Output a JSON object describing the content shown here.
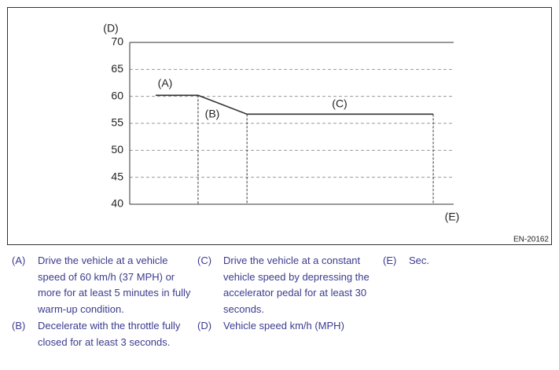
{
  "chart_data": {
    "type": "line",
    "y_label": "(D)",
    "x_label": "(E)",
    "x": [
      8,
      21.1,
      36.2,
      93.7
    ],
    "series": [
      {
        "color": "#333333",
        "values": [
          60.2,
          60.2,
          56.7,
          56.7
        ]
      }
    ],
    "xlim": [
      0,
      100
    ],
    "ylim": [
      40,
      70
    ],
    "yticks": [
      40,
      45,
      50,
      55,
      60,
      65,
      70
    ],
    "grid": true,
    "annotations": [
      "(A)",
      "(B)",
      "(C)"
    ]
  },
  "figure_id": "EN-20162",
  "notes": [
    {
      "key": "(A)",
      "text": "Drive the vehicle at a vehicle speed of 60 km/h (37 MPH) or more for at least 5 minutes in fully warm-up condition."
    },
    {
      "key": "(B)",
      "text": "Decelerate with the throttle fully closed for at least 3 seconds."
    },
    {
      "key": "(C)",
      "text": "Drive the vehicle at a constant vehicle speed by depressing the accelerator pedal for at least 30 seconds."
    },
    {
      "key": "(D)",
      "text": "Vehicle speed km/h (MPH)"
    },
    {
      "key": "(E)",
      "text": "Sec."
    }
  ]
}
